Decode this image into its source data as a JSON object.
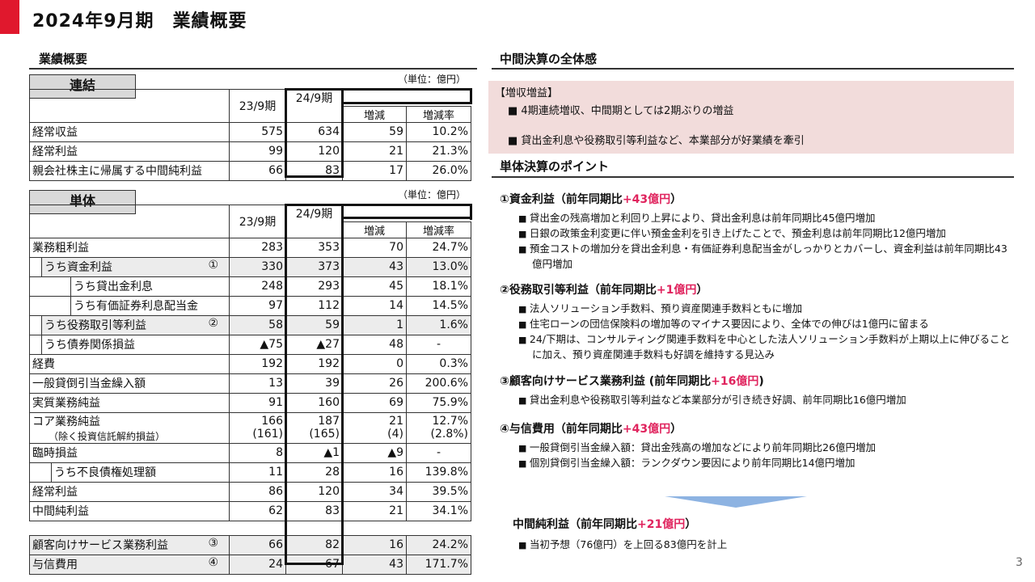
{
  "title": "2024年9月期　業績概要",
  "page_number": "3",
  "left": {
    "heading": "業績概要",
    "unit": "（単位：億円）",
    "columns": [
      "23/9期",
      "24/9期",
      "増減",
      "増減率"
    ],
    "consolidated": {
      "tag": "連結",
      "rows": [
        {
          "label": "経常収益",
          "v": [
            "575",
            "634",
            "59",
            "10.2%"
          ]
        },
        {
          "label": "経常利益",
          "v": [
            "99",
            "120",
            "21",
            "21.3%"
          ]
        },
        {
          "label": "親会社株主に帰属する中間純利益",
          "v": [
            "66",
            "83",
            "17",
            "26.0%"
          ]
        }
      ]
    },
    "standalone": {
      "tag": "単体",
      "rows": [
        {
          "label": "業務粗利益",
          "v": [
            "283",
            "353",
            "70",
            "24.7%"
          ]
        },
        {
          "label": "うち資金利益",
          "mark": "①",
          "v": [
            "330",
            "373",
            "43",
            "13.0%"
          ]
        },
        {
          "label": "うち貸出金利息",
          "v": [
            "248",
            "293",
            "45",
            "18.1%"
          ]
        },
        {
          "label": "うち有価証券利息配当金",
          "v": [
            "97",
            "112",
            "14",
            "14.5%"
          ]
        },
        {
          "label": "うち役務取引等利益",
          "mark": "②",
          "v": [
            "58",
            "59",
            "1",
            "1.6%"
          ]
        },
        {
          "label": "うち債券関係損益",
          "v": [
            "▲75",
            "▲27",
            "48",
            "-"
          ]
        },
        {
          "label": "経費",
          "v": [
            "192",
            "192",
            "0",
            "0.3%"
          ]
        },
        {
          "label": "一般貸倒引当金繰入額",
          "v": [
            "13",
            "39",
            "26",
            "200.6%"
          ]
        },
        {
          "label": "実質業務純益",
          "v": [
            "91",
            "160",
            "69",
            "75.9%"
          ]
        },
        {
          "label": "コア業務純益",
          "sub": "（除く投資信託解約損益）",
          "v": [
            "166",
            "187",
            "21",
            "12.7%"
          ],
          "v2": [
            "(161)",
            "(165)",
            "(4)",
            "(2.8%)"
          ]
        },
        {
          "label": "臨時損益",
          "v": [
            "8",
            "▲1",
            "▲9",
            "-"
          ]
        },
        {
          "label": "うち不良債権処理額",
          "v": [
            "11",
            "28",
            "16",
            "139.8%"
          ]
        },
        {
          "label": "経常利益",
          "v": [
            "86",
            "120",
            "34",
            "39.5%"
          ]
        },
        {
          "label": "中間純利益",
          "v": [
            "62",
            "83",
            "21",
            "34.1%"
          ]
        },
        {
          "label": "顧客向けサービス業務利益",
          "mark": "③",
          "v": [
            "66",
            "82",
            "16",
            "24.2%"
          ]
        },
        {
          "label": "与信費用",
          "mark": "④",
          "v": [
            "24",
            "67",
            "43",
            "171.7%"
          ]
        }
      ]
    }
  },
  "right": {
    "overview_heading": "中間決算の全体感",
    "overview_tag": "【増収増益】",
    "overview_bullets": [
      "4期連続増収、中間期としては2期ぶりの増益",
      "貸出金利息や役務取引等利益など、本業部分が好業績を牽引"
    ],
    "points_heading": "単体決算のポイント",
    "points": [
      {
        "title": "①資金利益（前年同期比",
        "delta": "+43億円",
        "close": "）",
        "bullets": [
          "貸出金の残高増加と利回り上昇により、貸出金利息は前年同期比45億円増加",
          "日銀の政策金利変更に伴い預金金利を引き上げたことで、預金利息は前年同期比12億円増加",
          "預金コストの増加分を貸出金利息・有価証券利息配当金がしっかりとカバーし、資金利益は前年同期比43億円増加"
        ]
      },
      {
        "title": "②役務取引等利益（前年同期比",
        "delta": "+1億円",
        "close": "）",
        "bullets": [
          "法人ソリューション手数料、預り資産関連手数料ともに増加",
          "住宅ローンの団信保険料の増加等のマイナス要因により、全体での伸びは1億円に留まる",
          "24/下期は、コンサルティング関連手数料を中心とした法人ソリューション手数料が上期以上に伸びることに加え、預り資産関連手数料も好調を維持する見込み"
        ]
      },
      {
        "title": "③顧客向けサービス業務利益 (前年同期比",
        "delta": "+16億円",
        "close": ")",
        "bullets": [
          "貸出金利息や役務取引等利益など本業部分が引き続き好調、前年同期比16億円増加"
        ]
      },
      {
        "title": "④与信費用（前年同期比",
        "delta": "+43億円",
        "close": "）",
        "bullets": [
          "一般貸倒引当金繰入額：貸出金残高の増加などにより前年同期比26億円増加",
          "個別貸倒引当金繰入額：ランクダウン要因により前年同期比14億円増加"
        ]
      }
    ],
    "conclusion": {
      "title": "中間純利益（前年同期比",
      "delta": "+21億円",
      "close": "）",
      "bullet": "当初予想（76億円）を上回る83億円を計上"
    }
  },
  "colors": {
    "accent": "#e0182d",
    "highlight": "#e0245e",
    "pink_box": "#f2dcdb",
    "arrow": "#8db3e2"
  }
}
